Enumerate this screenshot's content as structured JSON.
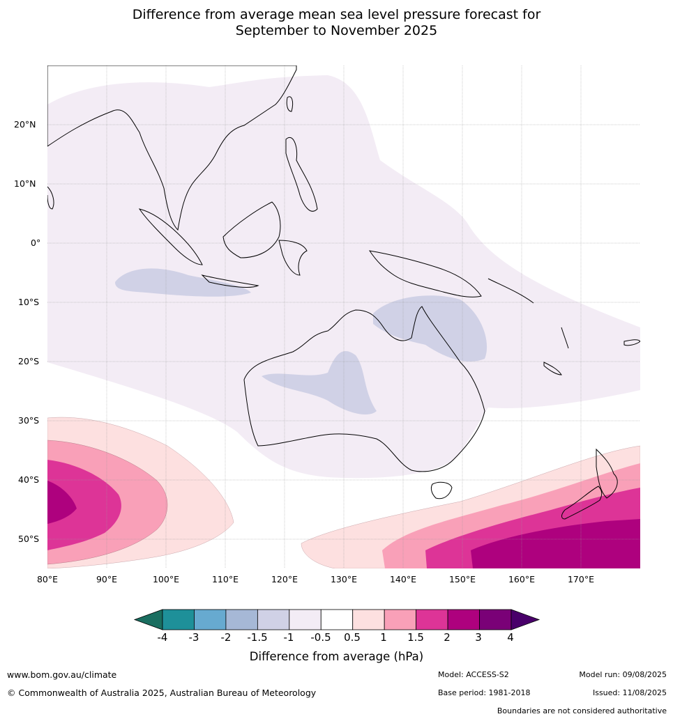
{
  "title": {
    "line1": "Difference from average mean sea level pressure forecast for",
    "line2": "September to November 2025"
  },
  "map": {
    "extent": {
      "lon_min": 80,
      "lon_max": 180,
      "lat_min": -55,
      "lat_max": 30
    },
    "lat_labels": [
      "20°N",
      "10°N",
      "0°",
      "10°S",
      "20°S",
      "30°S",
      "40°S",
      "50°S"
    ],
    "lon_labels": [
      "80°E",
      "90°E",
      "100°E",
      "110°E",
      "120°E",
      "130°E",
      "140°E",
      "150°E",
      "160°E",
      "170°E"
    ]
  },
  "colorbar": {
    "tick_labels": [
      "-4",
      "-3",
      "-2",
      "-1.5",
      "-1",
      "-0.5",
      "0.5",
      "1",
      "1.5",
      "2",
      "3",
      "4"
    ],
    "colors": [
      "#1a6e60",
      "#1e9099",
      "#67aad0",
      "#a6b8d6",
      "#d0d1e6",
      "#f3ecf5",
      "#ffffff",
      "#fde0e0",
      "#f9a0b8",
      "#dd3497",
      "#ae017e",
      "#7a0177",
      "#49006a"
    ],
    "label": "Difference from average (hPa)"
  },
  "footer": {
    "website": "www.bom.gov.au/climate",
    "copyright": "© Commonwealth of Australia 2025, Australian Bureau of Meteorology",
    "model": "Model: ACCESS-S2",
    "model_run": "Model run: 09/08/2025",
    "base_period": "Base period: 1981-2018",
    "issued": "Issued: 11/08/2025",
    "disclaimer": "Boundaries are not considered authoritative"
  }
}
